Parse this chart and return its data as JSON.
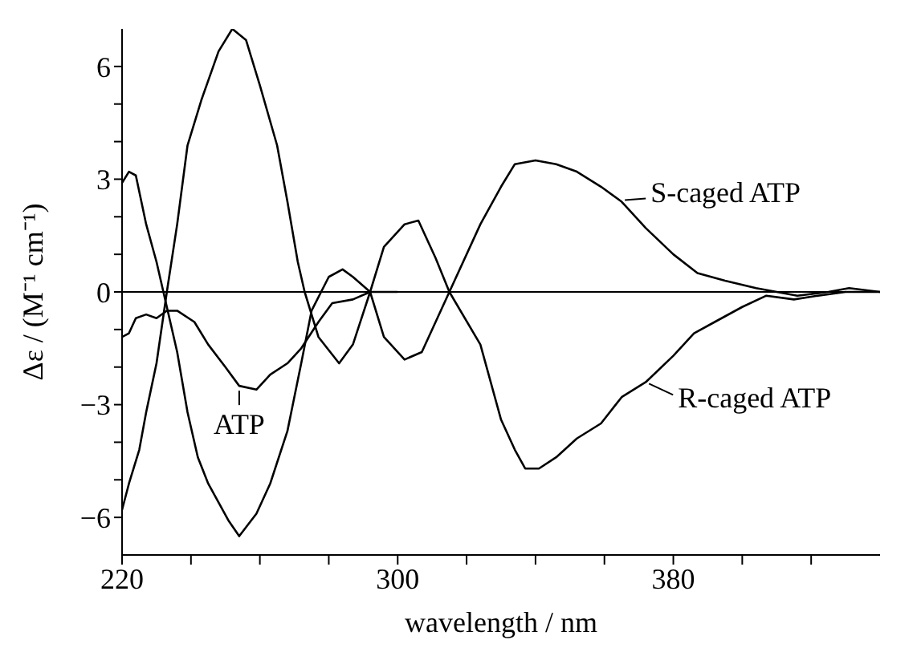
{
  "chart_data": {
    "type": "line",
    "xlabel": "wavelength / nm",
    "ylabel": "Δε / (M⁻¹ cm⁻¹)",
    "xlim": [
      220,
      440
    ],
    "xticks": [
      220,
      {
        "value": 240,
        "label": null
      },
      {
        "value": 260,
        "label": null
      },
      {
        "value": 280,
        "label": null
      },
      300,
      {
        "value": 320,
        "label": null
      },
      {
        "value": 340,
        "label": null
      },
      {
        "value": 360,
        "label": null
      },
      380,
      {
        "value": 400,
        "label": null
      },
      {
        "value": 420,
        "label": null
      }
    ],
    "ylim": [
      -7,
      7
    ],
    "yticks": [
      {
        "value": -6,
        "label": "−6"
      },
      {
        "value": -5,
        "label": null
      },
      {
        "value": -4,
        "label": null
      },
      {
        "value": -3,
        "label": "−3"
      },
      {
        "value": -2,
        "label": null
      },
      {
        "value": -1,
        "label": null
      },
      0,
      {
        "value": 1,
        "label": null
      },
      {
        "value": 2,
        "label": null
      },
      3,
      {
        "value": 4,
        "label": null
      },
      {
        "value": 5,
        "label": null
      },
      6
    ],
    "grid": false,
    "legend": "right",
    "marker": "none",
    "line_style": "solid",
    "ref_lines": [
      {
        "axis": "y",
        "value": 0,
        "color": "#000000"
      }
    ],
    "series": [
      {
        "name": "S-caged ATP",
        "color": "#000000",
        "x": [
          220,
          222,
          224,
          227,
          230,
          232,
          236,
          239,
          242,
          245,
          251,
          254,
          259,
          263,
          268,
          272,
          275,
          280,
          284,
          287,
          292,
          296,
          302,
          307,
          311,
          315,
          324,
          330,
          334,
          340,
          346,
          352,
          359,
          365,
          372,
          380,
          387,
          395,
          404,
          410,
          416,
          425,
          431,
          440
        ],
        "values": [
          2.9,
          3.2,
          3.1,
          1.8,
          0.8,
          0,
          -1.6,
          -3.2,
          -4.4,
          -5.1,
          -6.1,
          -6.5,
          -5.9,
          -5.1,
          -3.7,
          -1.9,
          -0.5,
          0.4,
          0.6,
          0.4,
          0,
          -1.2,
          -1.8,
          -1.6,
          -0.8,
          0,
          1.8,
          2.8,
          3.4,
          3.5,
          3.4,
          3.2,
          2.8,
          2.4,
          1.7,
          1.0,
          0.5,
          0.3,
          0.1,
          0,
          -0.1,
          0,
          0.1,
          0
        ]
      },
      {
        "name": "R-caged ATP",
        "color": "#000000",
        "x": [
          220,
          222,
          225,
          227,
          230,
          233,
          236,
          239,
          243,
          248,
          252,
          256,
          260,
          265,
          268,
          271,
          273,
          277,
          283,
          287,
          292,
          296,
          302,
          306,
          311,
          315,
          324,
          330,
          334,
          337,
          341,
          346,
          352,
          359,
          365,
          372,
          380,
          386,
          392,
          400,
          407,
          415,
          422,
          430,
          440
        ],
        "values": [
          -5.8,
          -5.1,
          -4.2,
          -3.2,
          -1.9,
          0,
          1.8,
          3.9,
          5.1,
          6.4,
          7.0,
          6.7,
          5.5,
          3.9,
          2.4,
          0.8,
          0,
          -1.2,
          -1.9,
          -1.4,
          0,
          1.2,
          1.8,
          1.9,
          0.9,
          0,
          -1.4,
          -3.4,
          -4.2,
          -4.7,
          -4.7,
          -4.4,
          -3.9,
          -3.5,
          -2.8,
          -2.4,
          -1.7,
          -1.1,
          -0.8,
          -0.4,
          -0.1,
          -0.2,
          -0.1,
          0,
          0
        ]
      },
      {
        "name": "ATP",
        "color": "#000000",
        "x": [
          220,
          222,
          224,
          227,
          230,
          233,
          236,
          241,
          245,
          250,
          254,
          259,
          263,
          268,
          272,
          277,
          281,
          287,
          292,
          300
        ],
        "values": [
          -1.2,
          -1.1,
          -0.7,
          -0.6,
          -0.7,
          -0.5,
          -0.5,
          -0.8,
          -1.4,
          -2.0,
          -2.5,
          -2.6,
          -2.2,
          -1.9,
          -1.5,
          -0.8,
          -0.3,
          -0.2,
          0,
          0
        ]
      }
    ]
  }
}
